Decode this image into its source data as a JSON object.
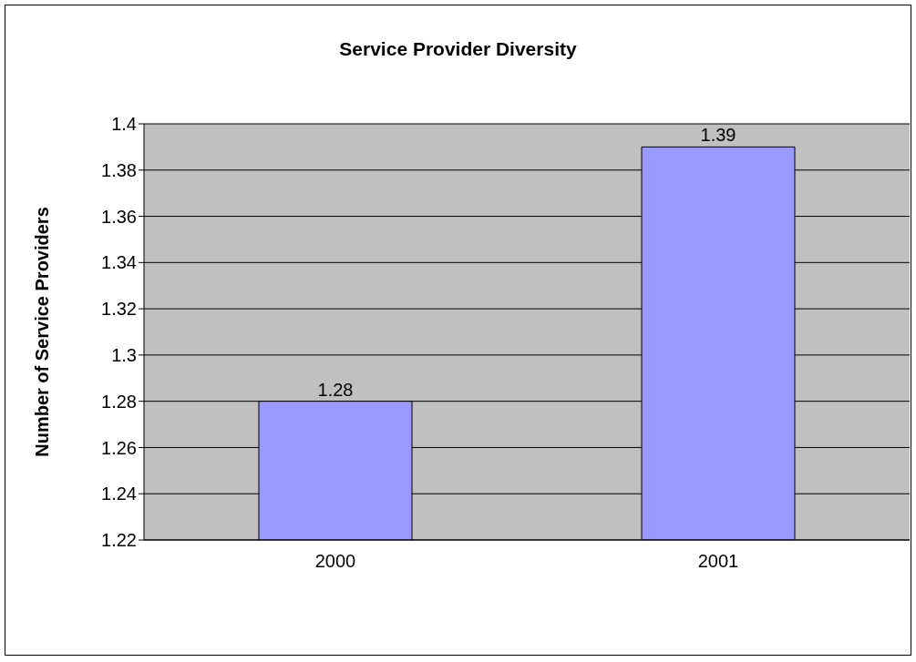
{
  "chart_data": {
    "type": "bar",
    "title": "Service Provider Diversity",
    "ylabel": "Number of Service Providers",
    "categories": [
      "2000",
      "2001"
    ],
    "values": [
      1.28,
      1.39
    ],
    "color": "#9999ff",
    "ylim": [
      1.22,
      1.4
    ],
    "yticks": [
      1.22,
      1.24,
      1.26,
      1.28,
      1.3,
      1.32,
      1.34,
      1.36,
      1.38,
      1.4
    ],
    "grid": "y",
    "data_labels": true,
    "legend": false
  }
}
